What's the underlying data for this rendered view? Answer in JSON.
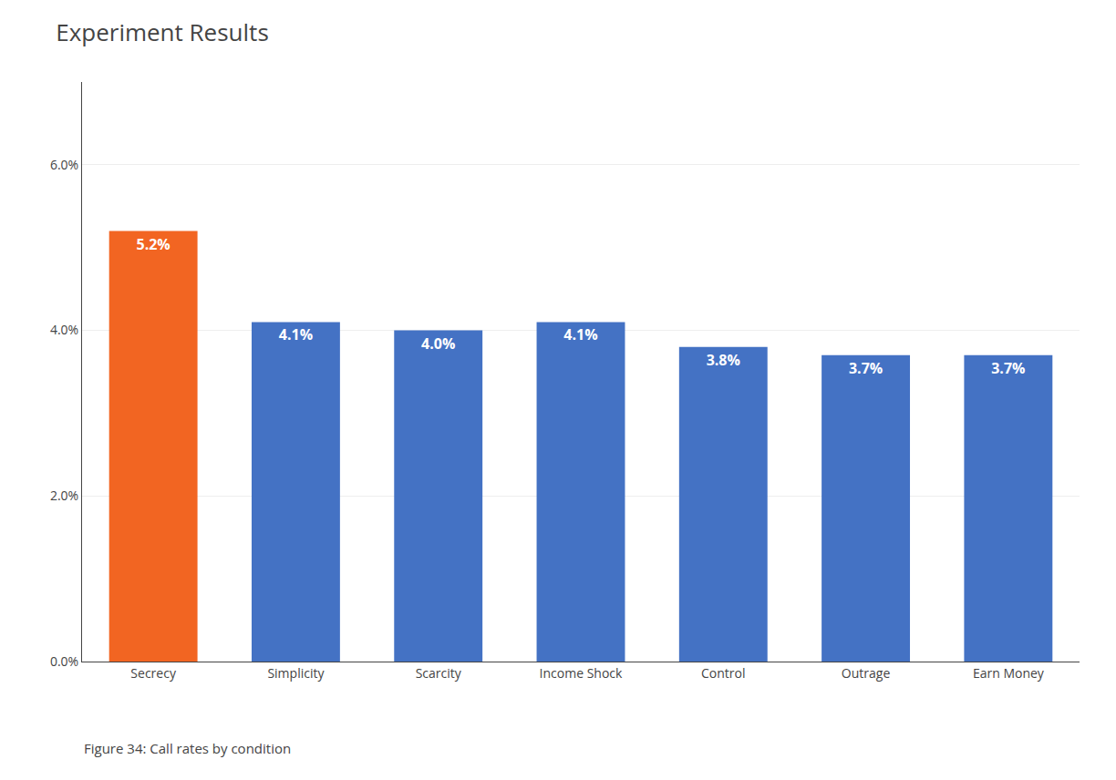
{
  "chart_data": {
    "type": "bar",
    "title": "Experiment Results",
    "annotations": [
      "Figure 34: Call rates by condition"
    ],
    "categories": [
      "Secrecy",
      "Simplicity",
      "Scarcity",
      "Income Shock",
      "Control",
      "Outrage",
      "Earn Money"
    ],
    "values": [
      5.2,
      4.1,
      4.0,
      4.1,
      3.8,
      3.7,
      3.7
    ],
    "value_labels": [
      "5.2%",
      "4.1%",
      "4.0%",
      "4.1%",
      "3.8%",
      "3.7%",
      "3.7%"
    ],
    "colors": [
      "#F26522",
      "#4472C4",
      "#4472C4",
      "#4472C4",
      "#4472C4",
      "#4472C4",
      "#4472C4"
    ],
    "ylim": [
      0,
      7.0
    ],
    "yticks": [
      {
        "value": 0.0,
        "label": "0.0%"
      },
      {
        "value": 2.0,
        "label": "2.0%"
      },
      {
        "value": 4.0,
        "label": "4.0%"
      },
      {
        "value": 6.0,
        "label": "6.0%"
      }
    ],
    "grid": true,
    "data_labels": true
  }
}
